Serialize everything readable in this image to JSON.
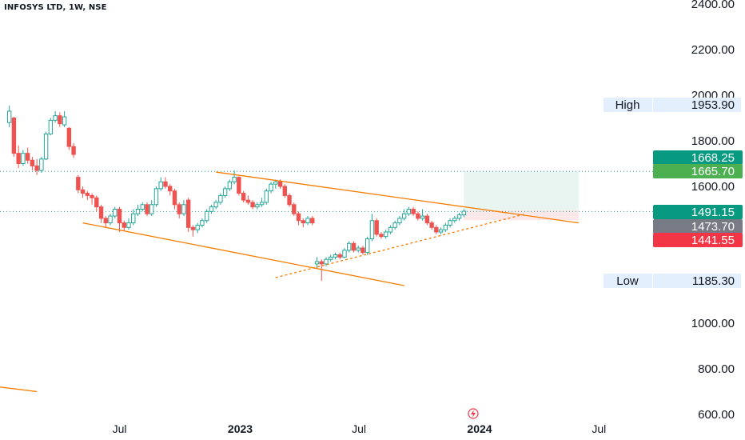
{
  "header": {
    "ticker": "INFOSYS LTD, 1W, NSE"
  },
  "colors": {
    "up": "#26a69a",
    "down": "#ef5350",
    "trend": "#f57c00",
    "level": "#26a69a",
    "tp_zone": "#e8f5f1",
    "sl_zone": "#fce8e8",
    "tag_green_dark": "#089981",
    "tag_green": "#4caf50",
    "tag_grey": "#787b86",
    "tag_red": "#f23645",
    "tag_hl_bg": "#e3effd"
  },
  "chart_data": {
    "type": "candlestick",
    "title": "INFOSYS LTD, 1W, NSE",
    "ylim": [
      600,
      2400
    ],
    "y_ticks": [
      "2400.00",
      "2200.00",
      "2000.00",
      "1800.00",
      "1600.00",
      "1000.00",
      "800.00",
      "600.00"
    ],
    "x_ticks": [
      {
        "label": "Jul",
        "date": "2022-07-01",
        "bold": false
      },
      {
        "label": "2023",
        "date": "2023-01-01",
        "bold": true
      },
      {
        "label": "Jul",
        "date": "2023-07-01",
        "bold": false
      },
      {
        "label": "2024",
        "date": "2024-01-01",
        "bold": true
      },
      {
        "label": "Jul",
        "date": "2024-07-01",
        "bold": false
      }
    ],
    "price_tags": [
      {
        "label": "High",
        "value": "1953.90",
        "price": 1953.9,
        "style": "hl"
      },
      {
        "label": "",
        "value": "1668.25",
        "price": 1668.25,
        "style": "green_dark"
      },
      {
        "label": "",
        "value": "1665.70",
        "price": 1665.7,
        "style": "green"
      },
      {
        "label": "",
        "value": "1491.15",
        "price": 1491.15,
        "style": "green_dark"
      },
      {
        "label": "",
        "value": "1473.70",
        "price": 1473.7,
        "style": "grey"
      },
      {
        "label": "",
        "value": "1441.55",
        "price": 1441.55,
        "style": "red"
      },
      {
        "label": "Low",
        "value": "1185.30",
        "price": 1185.3,
        "style": "hl"
      }
    ],
    "horizontal_levels": [
      1666,
      1490
    ],
    "position": {
      "start": "2023-12-08",
      "end": "2024-05-31",
      "entry": 1495,
      "target": 1666,
      "stop": 1452
    },
    "trendlines": [
      {
        "from": [
          "2022-11-25",
          1663
        ],
        "to": [
          "2024-05-31",
          1440
        ],
        "dashed": false
      },
      {
        "from": [
          "2022-05-06",
          1440
        ],
        "to": [
          "2023-09-08",
          1165
        ],
        "dashed": false
      },
      {
        "from": [
          "2023-02-24",
          1200
        ],
        "to": [
          "2024-03-08",
          1477
        ],
        "dashed": true
      },
      {
        "from": [
          "2021-12-31",
          720
        ],
        "to": [
          "2022-02-25",
          700
        ],
        "dashed": false
      }
    ],
    "candles": [
      [
        "2022-01-14",
        1880,
        1930,
        1955,
        1860
      ],
      [
        "2022-01-21",
        1900,
        1745,
        1905,
        1730
      ],
      [
        "2022-01-28",
        1745,
        1700,
        1780,
        1680
      ],
      [
        "2022-02-04",
        1700,
        1745,
        1760,
        1690
      ],
      [
        "2022-02-11",
        1745,
        1715,
        1770,
        1700
      ],
      [
        "2022-02-18",
        1715,
        1690,
        1730,
        1670
      ],
      [
        "2022-02-25",
        1690,
        1670,
        1720,
        1650
      ],
      [
        "2022-03-04",
        1670,
        1720,
        1730,
        1660
      ],
      [
        "2022-03-11",
        1720,
        1830,
        1840,
        1715
      ],
      [
        "2022-03-18",
        1830,
        1890,
        1900,
        1825
      ],
      [
        "2022-03-25",
        1890,
        1910,
        1930,
        1880
      ],
      [
        "2022-04-01",
        1910,
        1875,
        1925,
        1860
      ],
      [
        "2022-04-08",
        1870,
        1905,
        1930,
        1860
      ],
      [
        "2022-04-15",
        1855,
        1775,
        1860,
        1760
      ],
      [
        "2022-04-22",
        1775,
        1740,
        1790,
        1725
      ],
      [
        "2022-04-29",
        1640,
        1585,
        1650,
        1570
      ],
      [
        "2022-05-06",
        1585,
        1570,
        1600,
        1550
      ],
      [
        "2022-05-13",
        1570,
        1560,
        1580,
        1540
      ],
      [
        "2022-05-20",
        1560,
        1550,
        1570,
        1520
      ],
      [
        "2022-05-27",
        1550,
        1510,
        1560,
        1490
      ],
      [
        "2022-06-03",
        1510,
        1460,
        1520,
        1440
      ],
      [
        "2022-06-10",
        1460,
        1440,
        1470,
        1420
      ],
      [
        "2022-06-17",
        1440,
        1470,
        1480,
        1430
      ],
      [
        "2022-06-24",
        1470,
        1500,
        1510,
        1460
      ],
      [
        "2022-07-01",
        1500,
        1440,
        1510,
        1400
      ],
      [
        "2022-07-08",
        1440,
        1420,
        1450,
        1405
      ],
      [
        "2022-07-15",
        1420,
        1440,
        1460,
        1410
      ],
      [
        "2022-07-22",
        1440,
        1480,
        1500,
        1430
      ],
      [
        "2022-07-29",
        1480,
        1500,
        1520,
        1470
      ],
      [
        "2022-08-05",
        1500,
        1520,
        1530,
        1490
      ],
      [
        "2022-08-12",
        1520,
        1480,
        1530,
        1470
      ],
      [
        "2022-08-19",
        1480,
        1520,
        1540,
        1470
      ],
      [
        "2022-08-26",
        1520,
        1590,
        1600,
        1510
      ],
      [
        "2022-09-02",
        1590,
        1620,
        1640,
        1580
      ],
      [
        "2022-09-09",
        1620,
        1600,
        1640,
        1590
      ],
      [
        "2022-09-16",
        1600,
        1580,
        1610,
        1560
      ],
      [
        "2022-09-23",
        1580,
        1520,
        1590,
        1500
      ],
      [
        "2022-09-30",
        1520,
        1480,
        1530,
        1460
      ],
      [
        "2022-10-07",
        1480,
        1520,
        1540,
        1470
      ],
      [
        "2022-10-14",
        1540,
        1420,
        1550,
        1400
      ],
      [
        "2022-10-21",
        1420,
        1410,
        1430,
        1380
      ],
      [
        "2022-10-28",
        1410,
        1430,
        1440,
        1395
      ],
      [
        "2022-11-04",
        1430,
        1450,
        1460,
        1420
      ],
      [
        "2022-11-11",
        1450,
        1490,
        1500,
        1440
      ],
      [
        "2022-11-18",
        1490,
        1510,
        1520,
        1480
      ],
      [
        "2022-11-25",
        1510,
        1530,
        1540,
        1500
      ],
      [
        "2022-12-02",
        1530,
        1560,
        1570,
        1520
      ],
      [
        "2022-12-09",
        1560,
        1590,
        1600,
        1550
      ],
      [
        "2022-12-16",
        1590,
        1620,
        1630,
        1580
      ],
      [
        "2022-12-23",
        1620,
        1640,
        1670,
        1610
      ],
      [
        "2022-12-30",
        1640,
        1570,
        1645,
        1560
      ],
      [
        "2023-01-06",
        1570,
        1540,
        1580,
        1530
      ],
      [
        "2023-01-13",
        1540,
        1530,
        1560,
        1520
      ],
      [
        "2023-01-20",
        1530,
        1510,
        1540,
        1500
      ],
      [
        "2023-01-27",
        1510,
        1520,
        1530,
        1500
      ],
      [
        "2023-02-03",
        1520,
        1530,
        1550,
        1510
      ],
      [
        "2023-02-10",
        1530,
        1580,
        1590,
        1520
      ],
      [
        "2023-02-17",
        1580,
        1610,
        1620,
        1570
      ],
      [
        "2023-02-24",
        1610,
        1620,
        1630,
        1590
      ],
      [
        "2023-03-03",
        1620,
        1600,
        1630,
        1590
      ],
      [
        "2023-03-10",
        1600,
        1560,
        1610,
        1550
      ],
      [
        "2023-03-17",
        1560,
        1520,
        1570,
        1510
      ],
      [
        "2023-03-24",
        1520,
        1480,
        1530,
        1470
      ],
      [
        "2023-03-31",
        1480,
        1450,
        1490,
        1430
      ],
      [
        "2023-04-07",
        1450,
        1440,
        1460,
        1420
      ],
      [
        "2023-04-14",
        1440,
        1460,
        1470,
        1430
      ],
      [
        "2023-04-21",
        1460,
        1440,
        1470,
        1430
      ],
      [
        "2023-04-28",
        1260,
        1270,
        1290,
        1240
      ],
      [
        "2023-05-05",
        1270,
        1260,
        1280,
        1185
      ],
      [
        "2023-05-12",
        1260,
        1280,
        1290,
        1250
      ],
      [
        "2023-05-19",
        1280,
        1290,
        1300,
        1270
      ],
      [
        "2023-05-26",
        1290,
        1300,
        1310,
        1280
      ],
      [
        "2023-06-02",
        1300,
        1290,
        1310,
        1280
      ],
      [
        "2023-06-09",
        1290,
        1320,
        1330,
        1285
      ],
      [
        "2023-06-16",
        1320,
        1350,
        1360,
        1310
      ],
      [
        "2023-06-23",
        1350,
        1320,
        1360,
        1310
      ],
      [
        "2023-06-30",
        1320,
        1330,
        1340,
        1310
      ],
      [
        "2023-07-07",
        1330,
        1310,
        1340,
        1300
      ],
      [
        "2023-07-14",
        1310,
        1370,
        1380,
        1300
      ],
      [
        "2023-07-21",
        1370,
        1450,
        1480,
        1360
      ],
      [
        "2023-07-28",
        1450,
        1390,
        1460,
        1380
      ],
      [
        "2023-08-04",
        1390,
        1380,
        1400,
        1370
      ],
      [
        "2023-08-11",
        1380,
        1400,
        1410,
        1370
      ],
      [
        "2023-08-18",
        1400,
        1420,
        1430,
        1390
      ],
      [
        "2023-08-25",
        1420,
        1440,
        1450,
        1410
      ],
      [
        "2023-09-01",
        1440,
        1460,
        1470,
        1430
      ],
      [
        "2023-09-08",
        1460,
        1480,
        1500,
        1450
      ],
      [
        "2023-09-15",
        1480,
        1500,
        1510,
        1470
      ],
      [
        "2023-09-22",
        1500,
        1480,
        1510,
        1470
      ],
      [
        "2023-09-29",
        1480,
        1460,
        1490,
        1450
      ],
      [
        "2023-10-06",
        1460,
        1470,
        1500,
        1450
      ],
      [
        "2023-10-13",
        1470,
        1440,
        1480,
        1430
      ],
      [
        "2023-10-20",
        1440,
        1420,
        1450,
        1410
      ],
      [
        "2023-10-27",
        1420,
        1400,
        1430,
        1390
      ],
      [
        "2023-11-03",
        1400,
        1410,
        1420,
        1390
      ],
      [
        "2023-11-10",
        1410,
        1430,
        1440,
        1400
      ],
      [
        "2023-11-17",
        1430,
        1450,
        1460,
        1420
      ],
      [
        "2023-11-24",
        1450,
        1460,
        1470,
        1440
      ],
      [
        "2023-12-01",
        1460,
        1475,
        1485,
        1450
      ],
      [
        "2023-12-08",
        1475,
        1491,
        1500,
        1465
      ]
    ]
  }
}
